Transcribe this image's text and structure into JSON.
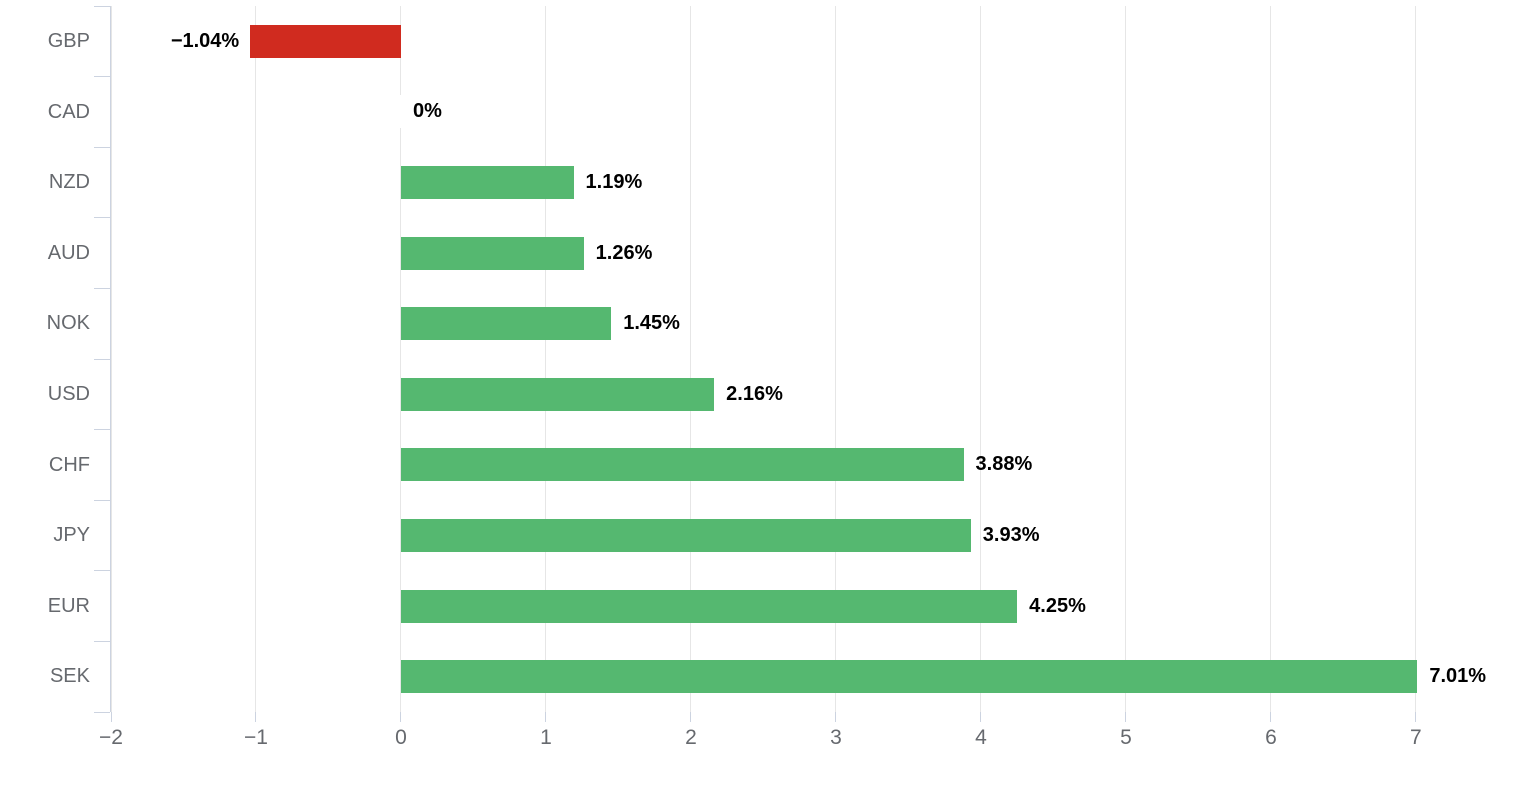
{
  "chart_data": {
    "type": "bar",
    "orientation": "horizontal",
    "title": "",
    "xlabel": "",
    "ylabel": "",
    "legend": false,
    "grid": true,
    "categories": [
      "GBP",
      "CAD",
      "NZD",
      "AUD",
      "NOK",
      "USD",
      "CHF",
      "JPY",
      "EUR",
      "SEK"
    ],
    "values": [
      -1.04,
      0,
      1.19,
      1.26,
      1.45,
      2.16,
      3.88,
      3.93,
      4.25,
      7.01
    ],
    "value_labels": [
      "−1.04%",
      "0%",
      "1.19%",
      "1.26%",
      "1.45%",
      "2.16%",
      "3.88%",
      "3.93%",
      "4.25%",
      "7.01%"
    ],
    "xlim": [
      -2,
      7.58
    ],
    "x_ticks": [
      {
        "v": -2,
        "label": "−2"
      },
      {
        "v": -1,
        "label": "−1"
      },
      {
        "v": 0,
        "label": "0"
      },
      {
        "v": 1,
        "label": "1"
      },
      {
        "v": 2,
        "label": "2"
      },
      {
        "v": 3,
        "label": "3"
      },
      {
        "v": 4,
        "label": "4"
      },
      {
        "v": 5,
        "label": "5"
      },
      {
        "v": 6,
        "label": "6"
      },
      {
        "v": 7,
        "label": "7"
      }
    ],
    "colors": {
      "positive_bar": "#55b870",
      "negative_bar": "#d02b1f",
      "zero_bar": "#ffffff",
      "gridline": "#e6e6e6",
      "axis_line": "#ccd3e0",
      "tick_label": "#66696e",
      "category_label": "#66696e",
      "value_label": "#000000",
      "background": "#ffffff"
    }
  }
}
